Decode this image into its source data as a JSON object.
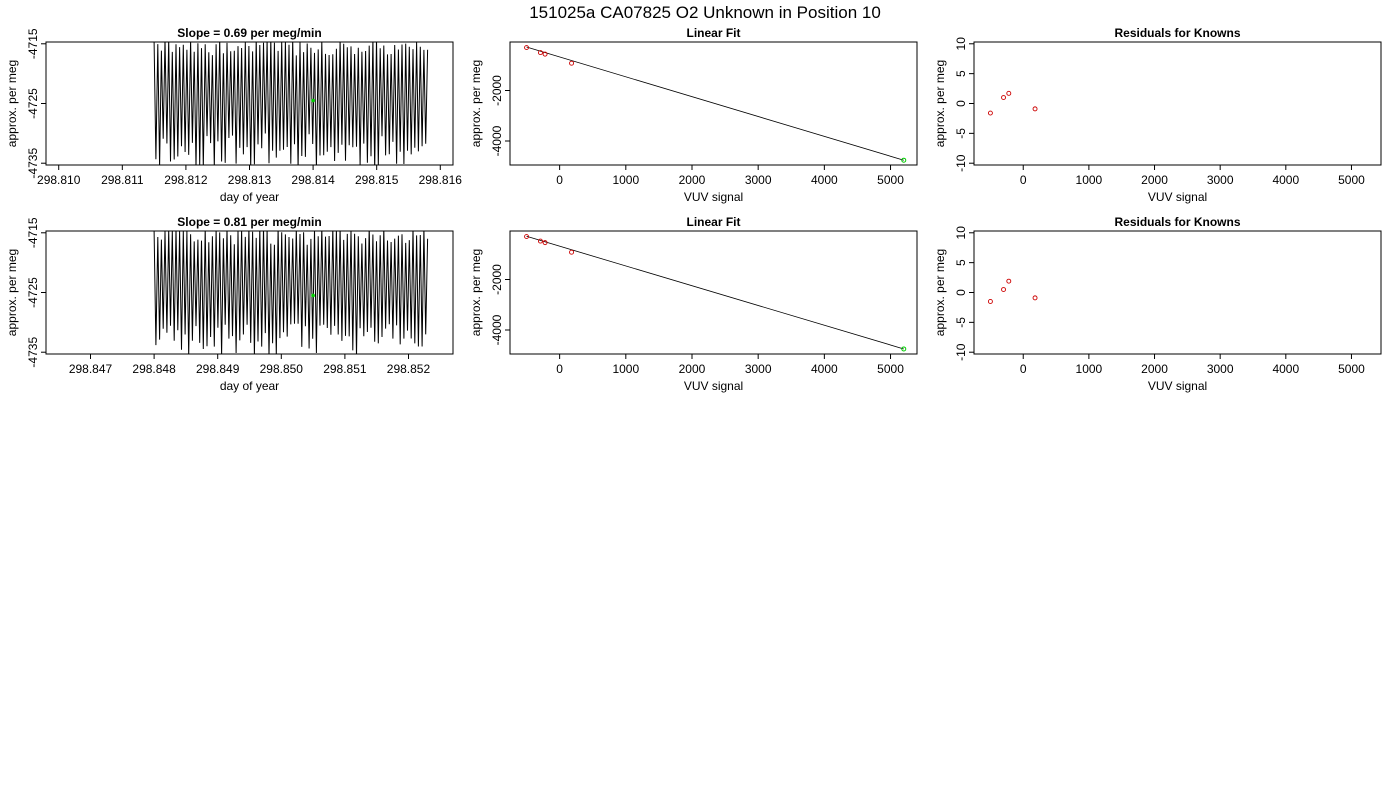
{
  "page_title": "151025a      CA07825   O2 Unknown in Position  10",
  "colors": {
    "trace": "#000000",
    "known_point": "#cc0000",
    "unknown_point": "#00cc00",
    "fit_line": "#000000",
    "frame": "#000000"
  },
  "chart_data": [
    {
      "id": "run1-trace",
      "type": "line",
      "title": "Slope =  0.69  per meg/min",
      "xlabel": "day of year",
      "ylabel": "approx. per meg",
      "xlim": [
        298.8098,
        298.8162
      ],
      "ylim": [
        -4735.3,
        -4714.7
      ],
      "xticks": [
        298.81,
        298.811,
        298.812,
        298.813,
        298.814,
        298.815,
        298.816
      ],
      "xtick_labels": [
        "298.810",
        "298.811",
        "298.812",
        "298.813",
        "298.814",
        "298.815",
        "298.816"
      ],
      "yticks": [
        -4715,
        -4725,
        -4735
      ],
      "ytick_labels": [
        "-4715",
        "-4725",
        "-4735"
      ],
      "trace": {
        "x_start": 298.8115,
        "x_end": 298.8158,
        "n_cycles": 75,
        "low": -4736,
        "high": -4714,
        "seed": 11
      },
      "marker": {
        "x": 298.814,
        "y": -4724.5
      }
    },
    {
      "id": "run1-fit",
      "type": "scatter",
      "title": "Linear Fit",
      "xlabel": "VUV signal",
      "ylabel": "approx. per meg",
      "xlim": [
        -750,
        5400
      ],
      "ylim": [
        -4950,
        -80
      ],
      "xticks": [
        0,
        1000,
        2000,
        3000,
        4000,
        5000
      ],
      "xtick_labels": [
        "0",
        "1000",
        "2000",
        "3000",
        "4000",
        "5000"
      ],
      "yticks": [
        -2000,
        -4000
      ],
      "ytick_labels": [
        "-2000",
        "-4000"
      ],
      "points": [
        {
          "x": -500,
          "y": -300
        },
        {
          "x": -290,
          "y": -500
        },
        {
          "x": -220,
          "y": -560
        },
        {
          "x": 180,
          "y": -920
        }
      ],
      "unknown": {
        "x": 5200,
        "y": -4760
      },
      "fit_line": {
        "x1": -500,
        "y1": -280,
        "x2": 5200,
        "y2": -4760
      }
    },
    {
      "id": "run1-resid",
      "type": "scatter",
      "title": "Residuals for Knowns",
      "xlabel": "VUV signal",
      "ylabel": "approx. per meg",
      "xlim": [
        -750,
        5450
      ],
      "ylim": [
        -10.3,
        10.3
      ],
      "xticks": [
        0,
        1000,
        2000,
        3000,
        4000,
        5000
      ],
      "xtick_labels": [
        "0",
        "1000",
        "2000",
        "3000",
        "4000",
        "5000"
      ],
      "yticks": [
        10,
        5,
        0,
        -5,
        -10
      ],
      "ytick_labels": [
        "10",
        "5",
        "0",
        "-5",
        "-10"
      ],
      "points": [
        {
          "x": -500,
          "y": -1.6
        },
        {
          "x": -300,
          "y": 1.0
        },
        {
          "x": -220,
          "y": 1.7
        },
        {
          "x": 180,
          "y": -0.9
        }
      ]
    },
    {
      "id": "run2-trace",
      "type": "line",
      "title": "Slope =  0.81  per meg/min",
      "xlabel": "day of year",
      "ylabel": "approx. per meg",
      "xlim": [
        298.8463,
        298.8527
      ],
      "ylim": [
        -4735.3,
        -4714.7
      ],
      "xticks": [
        298.847,
        298.848,
        298.849,
        298.85,
        298.851,
        298.852
      ],
      "xtick_labels": [
        "298.847",
        "298.848",
        "298.849",
        "298.850",
        "298.851",
        "298.852"
      ],
      "yticks": [
        -4715,
        -4725,
        -4735
      ],
      "ytick_labels": [
        "-4715",
        "-4725",
        "-4735"
      ],
      "trace": {
        "x_start": 298.848,
        "x_end": 298.8523,
        "n_cycles": 75,
        "low": -4736,
        "high": -4714,
        "seed": 23
      },
      "marker": {
        "x": 298.8505,
        "y": -4725.5
      }
    },
    {
      "id": "run2-fit",
      "type": "scatter",
      "title": "Linear Fit",
      "xlabel": "VUV signal",
      "ylabel": "approx. per meg",
      "xlim": [
        -750,
        5400
      ],
      "ylim": [
        -4950,
        -80
      ],
      "xticks": [
        0,
        1000,
        2000,
        3000,
        4000,
        5000
      ],
      "xtick_labels": [
        "0",
        "1000",
        "2000",
        "3000",
        "4000",
        "5000"
      ],
      "yticks": [
        -2000,
        -4000
      ],
      "ytick_labels": [
        "-2000",
        "-4000"
      ],
      "points": [
        {
          "x": -500,
          "y": -300
        },
        {
          "x": -290,
          "y": -480
        },
        {
          "x": -220,
          "y": -540
        },
        {
          "x": 180,
          "y": -920
        }
      ],
      "unknown": {
        "x": 5200,
        "y": -4750
      },
      "fit_line": {
        "x1": -500,
        "y1": -290,
        "x2": 5200,
        "y2": -4750
      }
    },
    {
      "id": "run2-resid",
      "type": "scatter",
      "title": "Residuals for Knowns",
      "xlabel": "VUV signal",
      "ylabel": "approx. per meg",
      "xlim": [
        -750,
        5450
      ],
      "ylim": [
        -10.3,
        10.3
      ],
      "xticks": [
        0,
        1000,
        2000,
        3000,
        4000,
        5000
      ],
      "xtick_labels": [
        "0",
        "1000",
        "2000",
        "3000",
        "4000",
        "5000"
      ],
      "yticks": [
        10,
        5,
        0,
        -5,
        -10
      ],
      "ytick_labels": [
        "10",
        "5",
        "0",
        "-5",
        "-10"
      ],
      "points": [
        {
          "x": -500,
          "y": -1.5
        },
        {
          "x": -300,
          "y": 0.5
        },
        {
          "x": -220,
          "y": 1.9
        },
        {
          "x": 180,
          "y": -0.9
        }
      ]
    }
  ]
}
